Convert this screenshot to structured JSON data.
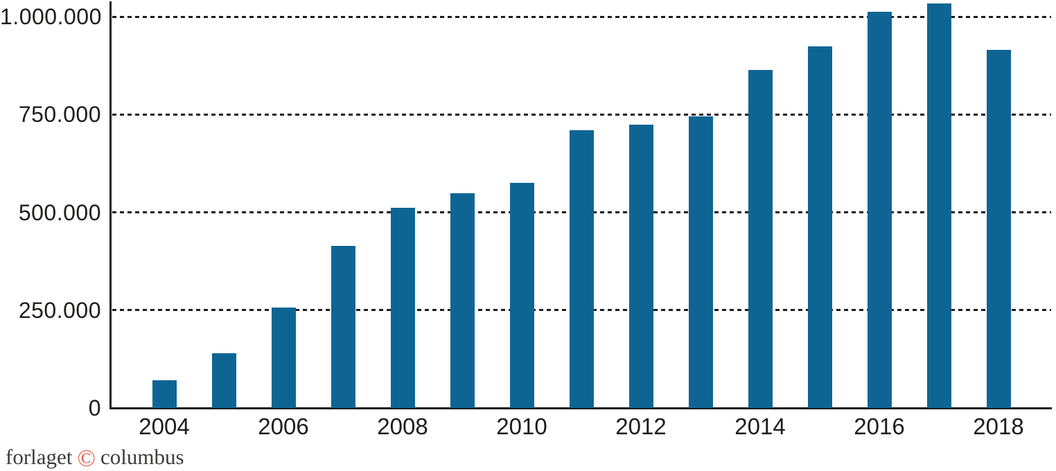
{
  "chart_data": {
    "type": "bar",
    "title": "",
    "xlabel": "",
    "ylabel": "",
    "x": [
      2004,
      2005,
      2006,
      2007,
      2008,
      2009,
      2010,
      2011,
      2012,
      2013,
      2014,
      2015,
      2016,
      2017,
      2018
    ],
    "values": [
      70000,
      140000,
      257000,
      414000,
      512000,
      549000,
      576000,
      710000,
      724000,
      746000,
      863000,
      924000,
      1012000,
      1033000,
      915000
    ],
    "ylim": [
      0,
      1040000
    ],
    "yticks": [
      0,
      250000,
      500000,
      750000,
      1000000
    ],
    "ytick_labels": [
      "0",
      "250.000",
      "500.000",
      "750.000",
      "1.000.000"
    ],
    "xtick_labels": [
      "2004",
      "2006",
      "2008",
      "2010",
      "2012",
      "2014",
      "2016",
      "2018"
    ],
    "grid": "horizontal dotted lines at each y tick above zero",
    "legend": null,
    "bar_color": "#0e6594"
  },
  "footer": {
    "prefix": "forlaget",
    "copyright_symbol": "©",
    "suffix": "columbus"
  },
  "colors": {
    "background": "#ffffff",
    "bar": "#0e6594",
    "axis": "#1d1d1b",
    "tick_label": "#1d1d1b",
    "footer_text": "#3c3c3b",
    "copyright": "#e8614b"
  }
}
